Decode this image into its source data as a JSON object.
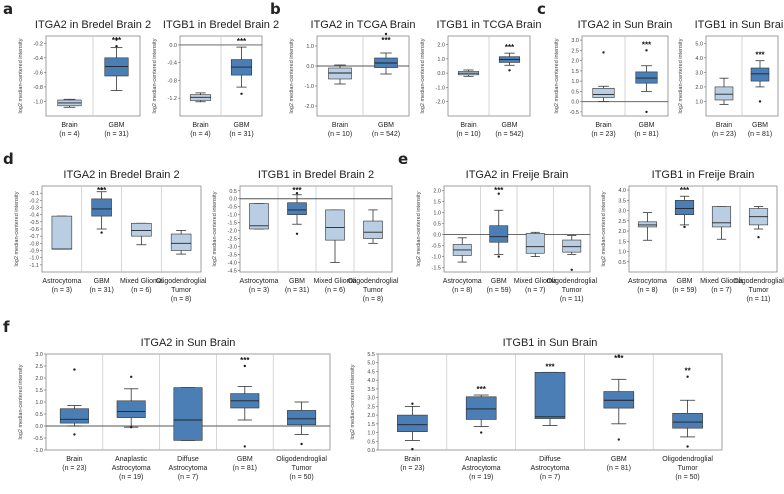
{
  "panel_labels": [
    "a",
    "b",
    "c",
    "d",
    "e",
    "f"
  ],
  "colors": {
    "light": "#b9cee3",
    "dark": "#4a7eb5",
    "stroke": "#333333"
  },
  "chart_data": [
    {
      "id": "a1",
      "type": "box",
      "title": "ITGA2 in Bredel Brain 2",
      "ylabel": "log2 median-centered intensity",
      "ylim": [
        -1.2,
        -0.1
      ],
      "ref": null,
      "ticks": [
        {
          "v": -0.2,
          "t": "-0.2"
        },
        {
          "v": -0.4,
          "t": "-0.4"
        },
        {
          "v": -0.6,
          "t": "-0.6"
        },
        {
          "v": -0.8,
          "t": "-0.8"
        },
        {
          "v": -1.0,
          "t": "-1.0"
        }
      ],
      "groups": [
        {
          "name": "Brain",
          "n": "(n = 4)",
          "sig": "",
          "color": "light",
          "wl": -1.08,
          "q1": -1.06,
          "med": -1.02,
          "q3": -0.98,
          "wh": -0.97,
          "out": []
        },
        {
          "name": "GBM",
          "n": "(n = 31)",
          "sig": "***",
          "color": "dark",
          "wl": -0.85,
          "q1": -0.65,
          "med": -0.52,
          "q3": -0.4,
          "wh": -0.26,
          "out": [
            -0.24,
            -0.15
          ]
        }
      ]
    },
    {
      "id": "a2",
      "type": "box",
      "title": "ITGB1 in Bredel Brain 2",
      "ylabel": "log2 median-centered intensity",
      "ylim": [
        -1.6,
        0.2
      ],
      "ref": 0,
      "ticks": [
        {
          "v": 0,
          "t": "0.0"
        },
        {
          "v": -0.4,
          "t": "-0.4"
        },
        {
          "v": -0.8,
          "t": "-0.8"
        },
        {
          "v": -1.2,
          "t": "-1.2"
        }
      ],
      "groups": [
        {
          "name": "Brain",
          "n": "(n = 4)",
          "sig": "",
          "color": "light",
          "wl": -1.28,
          "q1": -1.25,
          "med": -1.18,
          "q3": -1.12,
          "wh": -1.08,
          "out": []
        },
        {
          "name": "GBM",
          "n": "(n = 31)",
          "sig": "***",
          "color": "dark",
          "wl": -0.95,
          "q1": -0.68,
          "med": -0.5,
          "q3": -0.33,
          "wh": -0.05,
          "out": [
            -1.1
          ]
        }
      ]
    },
    {
      "id": "b1",
      "type": "box",
      "title": "ITGA2 in TCGA Brain",
      "ylabel": "log2 median-centered intensity",
      "ylim": [
        -2.5,
        1.5
      ],
      "ref": 0,
      "ticks": [
        {
          "v": 1,
          "t": "1.0"
        },
        {
          "v": 0,
          "t": "0.0"
        },
        {
          "v": -1,
          "t": "-1.0"
        },
        {
          "v": -2,
          "t": "-2.0"
        }
      ],
      "groups": [
        {
          "name": "Brain",
          "n": "(n = 10)",
          "sig": "",
          "color": "light",
          "wl": -0.9,
          "q1": -0.65,
          "med": -0.35,
          "q3": -0.1,
          "wh": 0.05,
          "out": []
        },
        {
          "name": "GBM",
          "n": "(n = 542)",
          "sig": "***",
          "color": "dark",
          "wl": -0.4,
          "q1": -0.08,
          "med": 0.15,
          "q3": 0.4,
          "wh": 0.65,
          "out": [
            1.6
          ]
        }
      ]
    },
    {
      "id": "b2",
      "type": "box",
      "title": "ITGB1 in TCGA Brain",
      "ylabel": "log2 median-centered intensity",
      "ylim": [
        -3.0,
        2.6
      ],
      "ref": null,
      "ticks": [
        {
          "v": 2,
          "t": "2.0"
        },
        {
          "v": 1,
          "t": "1.0"
        },
        {
          "v": 0,
          "t": "0.0"
        },
        {
          "v": -1,
          "t": "-1.0"
        },
        {
          "v": -2,
          "t": "-2.0"
        }
      ],
      "groups": [
        {
          "name": "Brain",
          "n": "(n = 10)",
          "sig": "",
          "color": "light",
          "wl": -0.22,
          "q1": -0.12,
          "med": 0.0,
          "q3": 0.12,
          "wh": 0.22,
          "out": []
        },
        {
          "name": "GBM",
          "n": "(n = 542)",
          "sig": "***",
          "color": "dark",
          "wl": 0.55,
          "q1": 0.75,
          "med": 0.95,
          "q3": 1.15,
          "wh": 1.4,
          "out": [
            0.2
          ]
        }
      ]
    },
    {
      "id": "c1",
      "type": "box",
      "title": "ITGA2 in Sun Brain",
      "ylabel": "log2 median-centered intensity",
      "ylim": [
        -0.7,
        3.2
      ],
      "ref": 0,
      "ticks": [
        {
          "v": 3,
          "t": "3.0"
        },
        {
          "v": 2.5,
          "t": "2.5"
        },
        {
          "v": 2,
          "t": "2.0"
        },
        {
          "v": 1.5,
          "t": "1.5"
        },
        {
          "v": 1,
          "t": "1.0"
        },
        {
          "v": 0.5,
          "t": "0.5"
        },
        {
          "v": 0,
          "t": "0.0"
        },
        {
          "v": -0.5,
          "t": "-0.5"
        }
      ],
      "groups": [
        {
          "name": "Brain",
          "n": "(n = 23)",
          "sig": "",
          "color": "light",
          "wl": 0.0,
          "q1": 0.2,
          "med": 0.35,
          "q3": 0.65,
          "wh": 0.75,
          "out": [
            2.4
          ]
        },
        {
          "name": "GBM",
          "n": "(n = 81)",
          "sig": "***",
          "color": "dark",
          "wl": 0.5,
          "q1": 0.9,
          "med": 1.15,
          "q3": 1.45,
          "wh": 1.75,
          "out": [
            2.5,
            -0.5
          ]
        }
      ]
    },
    {
      "id": "c2",
      "type": "box",
      "title": "ITGB1 in Sun Brain",
      "ylabel": "log2 median-centered intensity",
      "ylim": [
        0,
        5.5
      ],
      "ref": null,
      "ticks": [
        {
          "v": 5,
          "t": "5.0"
        },
        {
          "v": 4,
          "t": "4.0"
        },
        {
          "v": 3,
          "t": "3.0"
        },
        {
          "v": 2,
          "t": "2.0"
        },
        {
          "v": 1,
          "t": "1.0"
        }
      ],
      "groups": [
        {
          "name": "Brain",
          "n": "(n = 23)",
          "sig": "",
          "color": "light",
          "wl": 0.8,
          "q1": 1.1,
          "med": 1.5,
          "q3": 2.0,
          "wh": 2.6,
          "out": []
        },
        {
          "name": "GBM",
          "n": "(n = 81)",
          "sig": "***",
          "color": "dark",
          "wl": 2.0,
          "q1": 2.4,
          "med": 2.9,
          "q3": 3.3,
          "wh": 3.8,
          "out": [
            1.0
          ]
        }
      ]
    },
    {
      "id": "d1",
      "type": "box",
      "title": "ITGA2 in Bredel Brain 2",
      "ylabel": "log2 median-centered intensity",
      "ylim": [
        -1.2,
        0.0
      ],
      "ref": null,
      "ticks": [
        {
          "v": -0.1,
          "t": "-0.1"
        },
        {
          "v": -0.2,
          "t": "-0.2"
        },
        {
          "v": -0.3,
          "t": "-0.3"
        },
        {
          "v": -0.4,
          "t": "-0.4"
        },
        {
          "v": -0.5,
          "t": "-0.5"
        },
        {
          "v": -0.6,
          "t": "-0.6"
        },
        {
          "v": -0.7,
          "t": "-0.7"
        },
        {
          "v": -0.8,
          "t": "-0.8"
        },
        {
          "v": -0.9,
          "t": "-0.9"
        },
        {
          "v": -1.0,
          "t": "-1.0"
        },
        {
          "v": -1.1,
          "t": "-1.1"
        }
      ],
      "groups": [
        {
          "name": "Astrocytoma",
          "n": "(n = 3)",
          "sig": "",
          "color": "light",
          "wl": -0.88,
          "q1": -0.88,
          "med": -0.88,
          "q3": -0.42,
          "wh": -0.42,
          "out": []
        },
        {
          "name": "GBM",
          "n": "(n = 31)",
          "sig": "***",
          "color": "dark",
          "wl": -0.6,
          "q1": -0.42,
          "med": -0.32,
          "q3": -0.18,
          "wh": -0.08,
          "out": [
            -0.04,
            -0.65
          ]
        },
        {
          "name": "Mixed Glioma",
          "n": "(n = 6)",
          "sig": "",
          "color": "light",
          "wl": -0.82,
          "q1": -0.7,
          "med": -0.62,
          "q3": -0.52,
          "wh": -0.52,
          "out": []
        },
        {
          "name": "Oligodendroglial Tumor",
          "n": "(n = 8)",
          "sig": "",
          "color": "light",
          "wl": -0.95,
          "q1": -0.9,
          "med": -0.8,
          "q3": -0.67,
          "wh": -0.62,
          "out": []
        }
      ]
    },
    {
      "id": "d2",
      "type": "box",
      "title": "ITGB1 in Bredel Brain 2",
      "ylabel": "log2 median-centered intensity",
      "ylim": [
        -4.6,
        0.8
      ],
      "ref": 0,
      "ticks": [
        {
          "v": 0.5,
          "t": "0.5"
        },
        {
          "v": 0,
          "t": "0.0"
        },
        {
          "v": -0.5,
          "t": "-0.5"
        },
        {
          "v": -1,
          "t": "-1.0"
        },
        {
          "v": -1.5,
          "t": "-1.5"
        },
        {
          "v": -2,
          "t": "-2.0"
        },
        {
          "v": -2.5,
          "t": "-2.5"
        },
        {
          "v": -3,
          "t": "-3.0"
        },
        {
          "v": -3.5,
          "t": "-3.5"
        },
        {
          "v": -4,
          "t": "-4.0"
        },
        {
          "v": -4.5,
          "t": "-4.5"
        }
      ],
      "groups": [
        {
          "name": "Astrocytoma",
          "n": "(n = 3)",
          "sig": "",
          "color": "light",
          "wl": -1.9,
          "q1": -1.9,
          "med": -1.7,
          "q3": -0.3,
          "wh": -0.3,
          "out": []
        },
        {
          "name": "GBM",
          "n": "(n = 31)",
          "sig": "***",
          "color": "dark",
          "wl": -1.6,
          "q1": -1.0,
          "med": -0.7,
          "q3": -0.25,
          "wh": 0.25,
          "out": [
            0.35,
            -2.2
          ]
        },
        {
          "name": "Mixed Glioma",
          "n": "(n = 6)",
          "sig": "",
          "color": "light",
          "wl": -4.0,
          "q1": -2.6,
          "med": -1.8,
          "q3": -0.7,
          "wh": -0.7,
          "out": []
        },
        {
          "name": "Oligodendroglial Tumor",
          "n": "(n = 8)",
          "sig": "",
          "color": "light",
          "wl": -2.8,
          "q1": -2.5,
          "med": -2.1,
          "q3": -1.4,
          "wh": -0.7,
          "out": []
        }
      ]
    },
    {
      "id": "e1",
      "type": "box",
      "title": "ITGA2 in Freije Brain",
      "ylabel": "log2 median-centered intensity",
      "ylim": [
        -1.7,
        2.2
      ],
      "ref": 0,
      "ticks": [
        {
          "v": 2,
          "t": "2.0"
        },
        {
          "v": 1.5,
          "t": "1.5"
        },
        {
          "v": 1,
          "t": "1.0"
        },
        {
          "v": 0.5,
          "t": "0.5"
        },
        {
          "v": 0,
          "t": "0.0"
        },
        {
          "v": -0.5,
          "t": "-0.5"
        },
        {
          "v": -1,
          "t": "-1.0"
        },
        {
          "v": -1.5,
          "t": "-1.5"
        }
      ],
      "groups": [
        {
          "name": "Astrocytoma",
          "n": "(n = 8)",
          "sig": "",
          "color": "light",
          "wl": -1.25,
          "q1": -0.95,
          "med": -0.7,
          "q3": -0.45,
          "wh": -0.15,
          "out": []
        },
        {
          "name": "GBM",
          "n": "(n = 59)",
          "sig": "***",
          "color": "dark",
          "wl": -0.9,
          "q1": -0.35,
          "med": -0.1,
          "q3": 0.4,
          "wh": 1.1,
          "out": [
            1.85,
            -1.0
          ]
        },
        {
          "name": "Mixed Glioma",
          "n": "(n = 7)",
          "sig": "",
          "color": "light",
          "wl": -1.0,
          "q1": -0.85,
          "med": -0.55,
          "q3": 0.05,
          "wh": 0.1,
          "out": []
        },
        {
          "name": "Oligodendroglial Tumor",
          "n": "(n = 11)",
          "sig": "",
          "color": "light",
          "wl": -0.9,
          "q1": -0.8,
          "med": -0.55,
          "q3": -0.25,
          "wh": -0.05,
          "out": [
            -1.6
          ]
        }
      ]
    },
    {
      "id": "e2",
      "type": "box",
      "title": "ITGB1 in Freije Brain",
      "ylabel": "log2 median-centered intensity",
      "ylim": [
        0.0,
        4.2
      ],
      "ref": null,
      "ticks": [
        {
          "v": 4,
          "t": "4.0"
        },
        {
          "v": 3.5,
          "t": "3.5"
        },
        {
          "v": 3,
          "t": "3.0"
        },
        {
          "v": 2.5,
          "t": "2.5"
        },
        {
          "v": 2,
          "t": "2.0"
        },
        {
          "v": 1.5,
          "t": "1.5"
        },
        {
          "v": 1,
          "t": "1.0"
        },
        {
          "v": 0.5,
          "t": "0.5"
        }
      ],
      "groups": [
        {
          "name": "Astrocytoma",
          "n": "(n = 8)",
          "sig": "",
          "color": "light",
          "wl": 1.55,
          "q1": 2.2,
          "med": 2.3,
          "q3": 2.45,
          "wh": 2.9,
          "out": []
        },
        {
          "name": "GBM",
          "n": "(n = 59)",
          "sig": "***",
          "color": "dark",
          "wl": 2.3,
          "q1": 2.8,
          "med": 3.1,
          "q3": 3.5,
          "wh": 3.7,
          "out": [
            2.2
          ]
        },
        {
          "name": "Mixed Glioma",
          "n": "(n = 7)",
          "sig": "",
          "color": "light",
          "wl": 1.6,
          "q1": 2.2,
          "med": 2.4,
          "q3": 3.2,
          "wh": 3.2,
          "out": []
        },
        {
          "name": "Oligodendroglial Tumor",
          "n": "(n = 11)",
          "sig": "",
          "color": "light",
          "wl": 2.1,
          "q1": 2.3,
          "med": 2.7,
          "q3": 3.1,
          "wh": 3.2,
          "out": [
            1.7
          ]
        }
      ]
    },
    {
      "id": "f1",
      "type": "box",
      "title": "ITGA2 in Sun Brain",
      "ylabel": "log2 median-centered intensity",
      "ylim": [
        -1.0,
        3.0
      ],
      "ref": 0,
      "ticks": [
        {
          "v": 3,
          "t": "3.0"
        },
        {
          "v": 2.5,
          "t": "2.5"
        },
        {
          "v": 2,
          "t": "2.0"
        },
        {
          "v": 1.5,
          "t": "1.5"
        },
        {
          "v": 1,
          "t": "1.0"
        },
        {
          "v": 0.5,
          "t": "0.5"
        },
        {
          "v": 0,
          "t": "0.0"
        },
        {
          "v": -0.5,
          "t": "-0.5"
        },
        {
          "v": -1,
          "t": "-1.0"
        }
      ],
      "groups": [
        {
          "name": "Brain",
          "n": "(n = 23)",
          "sig": "",
          "color": "dark",
          "wl": 0.0,
          "q1": 0.12,
          "med": 0.28,
          "q3": 0.72,
          "wh": 0.85,
          "out": [
            2.35,
            -0.35
          ]
        },
        {
          "name": "Anaplastic Astrocytoma",
          "n": "(n = 19)",
          "sig": "",
          "color": "dark",
          "wl": -0.05,
          "q1": 0.35,
          "med": 0.6,
          "q3": 1.05,
          "wh": 1.55,
          "out": [
            2.05,
            -0.05
          ]
        },
        {
          "name": "Diffuse Astrocytoma",
          "n": "(n = 7)",
          "sig": "",
          "color": "dark",
          "wl": -0.6,
          "q1": -0.6,
          "med": 0.25,
          "q3": 1.6,
          "wh": 1.6,
          "out": []
        },
        {
          "name": "GBM",
          "n": "(n = 81)",
          "sig": "***",
          "color": "dark",
          "wl": 0.25,
          "q1": 0.75,
          "med": 1.05,
          "q3": 1.35,
          "wh": 1.65,
          "out": [
            2.5,
            -0.85
          ]
        },
        {
          "name": "Oligodendroglial Tumor",
          "n": "(n = 50)",
          "sig": "",
          "color": "dark",
          "wl": -0.35,
          "q1": 0.05,
          "med": 0.3,
          "q3": 0.65,
          "wh": 1.0,
          "out": [
            -0.75
          ]
        }
      ]
    },
    {
      "id": "f2",
      "type": "box",
      "title": "ITGB1 in Sun Brain",
      "ylabel": "log2 median-centered intensity",
      "ylim": [
        0.0,
        5.5
      ],
      "ref": null,
      "ticks": [
        {
          "v": 5.5,
          "t": "5.5"
        },
        {
          "v": 5,
          "t": "5.0"
        },
        {
          "v": 4.5,
          "t": "4.5"
        },
        {
          "v": 4,
          "t": "4.0"
        },
        {
          "v": 3.5,
          "t": "3.5"
        },
        {
          "v": 3,
          "t": "3.0"
        },
        {
          "v": 2.5,
          "t": "2.5"
        },
        {
          "v": 2,
          "t": "2.0"
        },
        {
          "v": 1.5,
          "t": "1.5"
        },
        {
          "v": 1,
          "t": "1.0"
        },
        {
          "v": 0.5,
          "t": "0.5"
        },
        {
          "v": 0,
          "t": "0.0"
        }
      ],
      "groups": [
        {
          "name": "Brain",
          "n": "(n = 23)",
          "sig": "",
          "color": "dark",
          "wl": 0.55,
          "q1": 1.05,
          "med": 1.45,
          "q3": 2.0,
          "wh": 2.5,
          "out": [
            2.65,
            0.05
          ]
        },
        {
          "name": "Anaplastic Astrocytoma",
          "n": "(n = 19)",
          "sig": "***",
          "color": "dark",
          "wl": 1.35,
          "q1": 1.75,
          "med": 2.35,
          "q3": 3.05,
          "wh": 3.15,
          "out": [
            1.0
          ]
        },
        {
          "name": "Diffuse Astrocytoma",
          "n": "(n = 7)",
          "sig": "***",
          "color": "dark",
          "wl": 1.4,
          "q1": 1.8,
          "med": 1.9,
          "q3": 4.45,
          "wh": 4.45,
          "out": []
        },
        {
          "name": "GBM",
          "n": "(n = 81)",
          "sig": "***",
          "color": "dark",
          "wl": 1.5,
          "q1": 2.4,
          "med": 2.85,
          "q3": 3.35,
          "wh": 4.05,
          "out": [
            5.4,
            0.6
          ]
        },
        {
          "name": "Oligodendroglial Tumor",
          "n": "(n = 50)",
          "sig": "**",
          "color": "dark",
          "wl": 0.75,
          "q1": 1.25,
          "med": 1.6,
          "q3": 2.1,
          "wh": 2.85,
          "out": [
            4.2,
            0.2
          ]
        }
      ]
    }
  ]
}
